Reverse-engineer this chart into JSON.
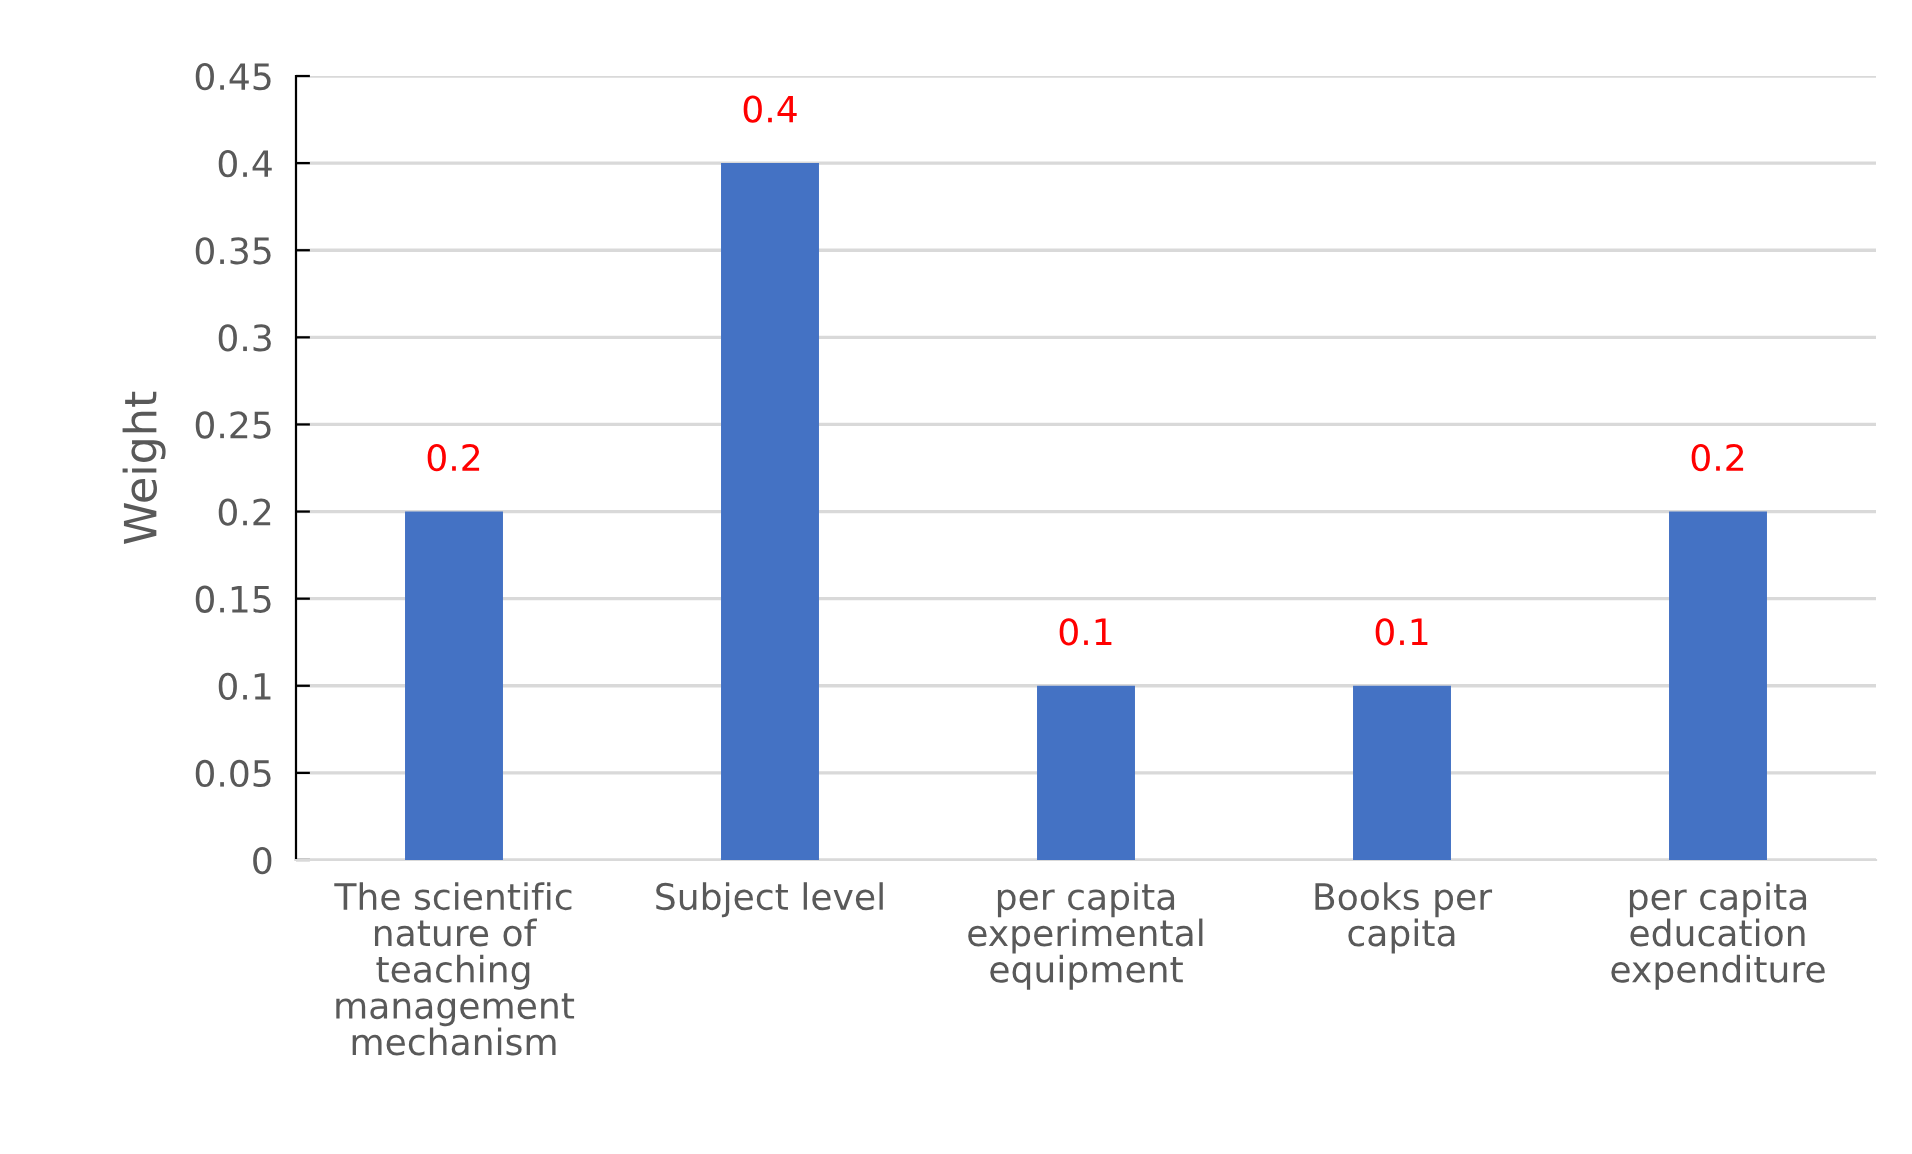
{
  "chart_data": {
    "type": "bar",
    "ylabel": "Weight",
    "categories": [
      "The scientific\nnature of\nteaching\nmanagement\nmechanism",
      "Subject level",
      "per capita\nexperimental\nequipment",
      "Books per\ncapita",
      "per capita\neducation\nexpenditure"
    ],
    "values": [
      0.2,
      0.4,
      0.1,
      0.1,
      0.2
    ],
    "color": "#4472c4",
    "ylim": [
      0,
      0.45
    ],
    "yticks": [
      0,
      0.05,
      0.1,
      0.15,
      0.2,
      0.25,
      0.3,
      0.35,
      0.4,
      0.45
    ],
    "grid": "y",
    "data_labels": true
  }
}
